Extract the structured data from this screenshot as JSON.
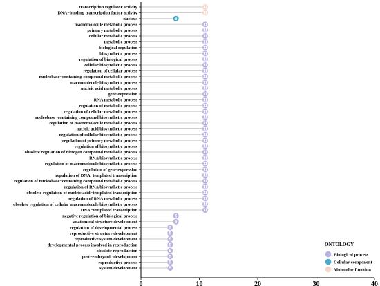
{
  "chart_data": {
    "type": "lollipop",
    "xlim": [
      0,
      40
    ],
    "x_ticks": [
      "0",
      "10",
      "20",
      "30",
      "40"
    ],
    "legend": {
      "title": "ONTOLOGY",
      "position": "bottom-right",
      "entries": [
        {
          "key": "BP",
          "label": "Biological process",
          "color": "#B8B3DD"
        },
        {
          "key": "CC",
          "label": "Cellular component",
          "color": "#4AABCB"
        },
        {
          "key": "MF",
          "label": "Molecular function",
          "color": "#F3D6CB"
        }
      ]
    },
    "terms": [
      {
        "term": "transcription regulator activity",
        "value": 11,
        "ontology": "MF"
      },
      {
        "term": "DNA−binding transcription factor activity",
        "value": 11,
        "ontology": "MF"
      },
      {
        "term": "nucleus",
        "value": 6,
        "ontology": "CC"
      },
      {
        "term": "macromolecule metabolic process",
        "value": 11,
        "ontology": "BP"
      },
      {
        "term": "primary metabolic process",
        "value": 11,
        "ontology": "BP"
      },
      {
        "term": "cellular metabolic process",
        "value": 11,
        "ontology": "BP"
      },
      {
        "term": "metabolic process",
        "value": 11,
        "ontology": "BP"
      },
      {
        "term": "biological regulation",
        "value": 11,
        "ontology": "BP"
      },
      {
        "term": "biosynthetic process",
        "value": 11,
        "ontology": "BP"
      },
      {
        "term": "regulation of biological process",
        "value": 11,
        "ontology": "BP"
      },
      {
        "term": "cellular biosynthetic process",
        "value": 11,
        "ontology": "BP"
      },
      {
        "term": "regulation of cellular process",
        "value": 11,
        "ontology": "BP"
      },
      {
        "term": "nucleobase−containing compound metabolic process",
        "value": 11,
        "ontology": "BP"
      },
      {
        "term": "macromolecule biosynthetic process",
        "value": 11,
        "ontology": "BP"
      },
      {
        "term": "nucleic acid metabolic process",
        "value": 11,
        "ontology": "BP"
      },
      {
        "term": "gene expression",
        "value": 11,
        "ontology": "BP"
      },
      {
        "term": "RNA metabolic process",
        "value": 11,
        "ontology": "BP"
      },
      {
        "term": "regulation of metabolic process",
        "value": 11,
        "ontology": "BP"
      },
      {
        "term": "regulation of cellular metabolic process",
        "value": 11,
        "ontology": "BP"
      },
      {
        "term": "nucleobase−containing compound biosynthetic process",
        "value": 11,
        "ontology": "BP"
      },
      {
        "term": "regulation of macromolecule metabolic process",
        "value": 11,
        "ontology": "BP"
      },
      {
        "term": "nucleic acid biosynthetic process",
        "value": 11,
        "ontology": "BP"
      },
      {
        "term": "regulation of cellular biosynthetic process",
        "value": 11,
        "ontology": "BP"
      },
      {
        "term": "regulation of primary metabolic process",
        "value": 11,
        "ontology": "BP"
      },
      {
        "term": "regulation of biosynthetic process",
        "value": 11,
        "ontology": "BP"
      },
      {
        "term": "obsolete regulation of nitrogen compound metabolic process",
        "value": 11,
        "ontology": "BP"
      },
      {
        "term": "RNA biosynthetic process",
        "value": 11,
        "ontology": "BP"
      },
      {
        "term": "regulation of macromolecule biosynthetic process",
        "value": 11,
        "ontology": "BP"
      },
      {
        "term": "regulation of gene expression",
        "value": 11,
        "ontology": "BP"
      },
      {
        "term": "regulation of DNA−templated transcription",
        "value": 11,
        "ontology": "BP"
      },
      {
        "term": "regulation of nucleobase−containing compound metabolic process",
        "value": 11,
        "ontology": "BP"
      },
      {
        "term": "regulation of RNA biosynthetic process",
        "value": 11,
        "ontology": "BP"
      },
      {
        "term": "obsolete regulation of nucleic acid−templated transcription",
        "value": 11,
        "ontology": "BP"
      },
      {
        "term": "regulation of RNA metabolic process",
        "value": 11,
        "ontology": "BP"
      },
      {
        "term": "obsolete regulation of cellular macromolecule biosynthetic process",
        "value": 11,
        "ontology": "BP"
      },
      {
        "term": "DNA−templated transcription",
        "value": 11,
        "ontology": "BP"
      },
      {
        "term": "negative regulation of biological process",
        "value": 6,
        "ontology": "BP"
      },
      {
        "term": "anatomical structure development",
        "value": 6,
        "ontology": "BP"
      },
      {
        "term": "regulation of developmental process",
        "value": 5,
        "ontology": "BP"
      },
      {
        "term": "reproductive structure development",
        "value": 5,
        "ontology": "BP"
      },
      {
        "term": "reproductive system development",
        "value": 5,
        "ontology": "BP"
      },
      {
        "term": "developmental process involved in reproduction",
        "value": 5,
        "ontology": "BP"
      },
      {
        "term": "obsolete reproduction",
        "value": 5,
        "ontology": "BP"
      },
      {
        "term": "post−embryonic development",
        "value": 5,
        "ontology": "BP"
      },
      {
        "term": "reproductive process",
        "value": 5,
        "ontology": "BP"
      },
      {
        "term": "system development",
        "value": 5,
        "ontology": "BP"
      }
    ]
  }
}
